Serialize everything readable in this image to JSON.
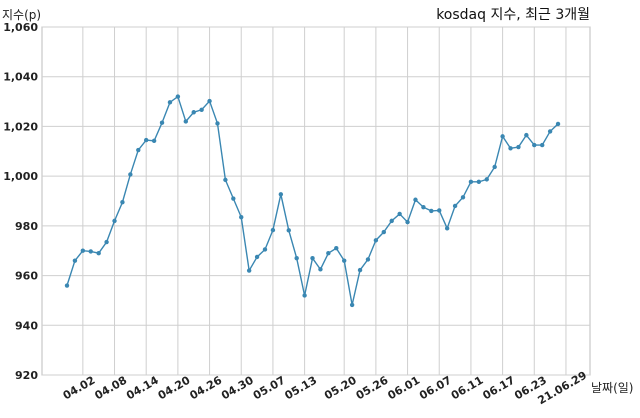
{
  "chart_data": {
    "type": "line",
    "title": "kosdaq 지수, 최근 3개월",
    "xlabel": "날짜(일)",
    "ylabel": "지수(p)",
    "ylim": [
      920,
      1060
    ],
    "yticks": [
      920,
      940,
      960,
      980,
      1000,
      1020,
      1040,
      1060
    ],
    "ytick_labels": [
      "920",
      "940",
      "960",
      "980",
      "1,000",
      "1,020",
      "1,040",
      "1,060"
    ],
    "xtick_labels": [
      "04.02",
      "04.08",
      "04.14",
      "04.20",
      "04.26",
      "04.30",
      "05.07",
      "05.13",
      "05.20",
      "05.26",
      "06.01",
      "06.07",
      "06.11",
      "06.17",
      "06.23",
      "21.06.29"
    ],
    "xtick_positions": [
      2,
      6,
      10,
      14,
      18,
      22,
      26,
      30,
      35,
      39,
      43,
      47,
      51,
      55,
      59,
      63
    ],
    "grid": true,
    "color": "#3a87b2",
    "series": [
      {
        "values": [
          956,
          966,
          970,
          969.7,
          969,
          973.5,
          982,
          989.5,
          1000.7,
          1010.5,
          1014.5,
          1014.2,
          1021.5,
          1029.7,
          1032,
          1022,
          1025.7,
          1026.7,
          1030.2,
          1021.2,
          998.5,
          991,
          983.5,
          962,
          967.5,
          970.5,
          978.3,
          992.7,
          978.2,
          967,
          952,
          967,
          962.5,
          969,
          971,
          966,
          948.2,
          962.2,
          966.5,
          974.2,
          977.5,
          982,
          984.8,
          981.5,
          990.5,
          987.5,
          986,
          986.2,
          979,
          988,
          991.5,
          997.7,
          997.7,
          998.7,
          1003.7,
          1016,
          1011.2,
          1011.7,
          1016.5,
          1012.5,
          1012.5,
          1018,
          1021
        ]
      }
    ]
  }
}
